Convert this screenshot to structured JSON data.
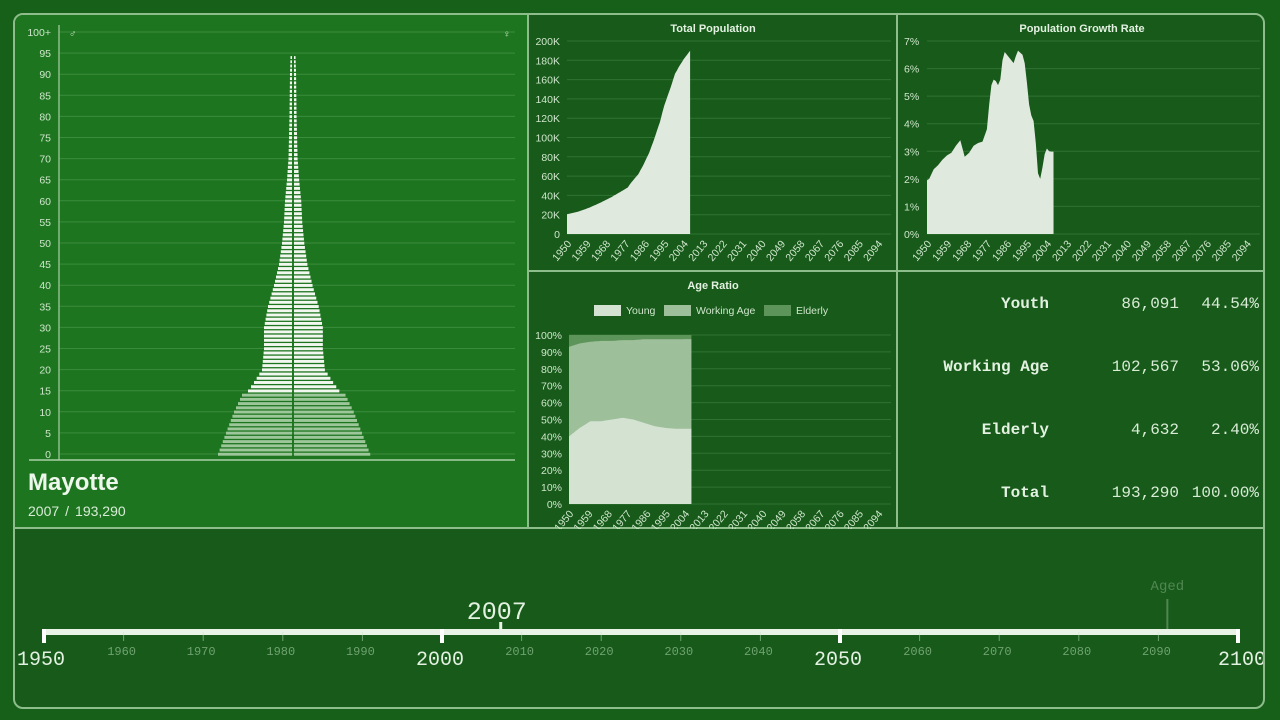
{
  "pyramid": {
    "country": "Mayotte",
    "year": "2007",
    "separator": "/",
    "population": "193,290",
    "male_symbol": "♂",
    "female_symbol": "♀",
    "age_ticks": [
      "0",
      "5",
      "10",
      "15",
      "20",
      "25",
      "30",
      "35",
      "40",
      "45",
      "50",
      "55",
      "60",
      "65",
      "70",
      "75",
      "80",
      "85",
      "90",
      "95",
      "100+"
    ]
  },
  "chart_data": [
    {
      "type": "area",
      "title": "Total Population",
      "xlabel": "",
      "ylabel": "",
      "x_ticks": [
        "1950",
        "1959",
        "1968",
        "1977",
        "1986",
        "1995",
        "2004",
        "2013",
        "2022",
        "2031",
        "2040",
        "2049",
        "2058",
        "2067",
        "2076",
        "2085",
        "2094"
      ],
      "y_ticks": [
        "0",
        "20K",
        "40K",
        "60K",
        "80K",
        "100K",
        "120K",
        "140K",
        "160K",
        "180K",
        "200K"
      ],
      "ylim": [
        0,
        200000
      ],
      "xlim": [
        1950,
        2100
      ],
      "grid": true,
      "x": [
        1950,
        1955,
        1960,
        1965,
        1970,
        1975,
        1978,
        1980,
        1983,
        1985,
        1988,
        1990,
        1993,
        1995,
        1998,
        2000,
        2002,
        2004,
        2007
      ],
      "values": [
        20500,
        23000,
        27000,
        32000,
        37500,
        44000,
        48000,
        54000,
        62000,
        70000,
        84000,
        96000,
        116000,
        133000,
        152000,
        166000,
        174000,
        181000,
        190000
      ]
    },
    {
      "type": "area",
      "title": "Population Growth Rate",
      "xlabel": "",
      "ylabel": "",
      "x_ticks": [
        "1950",
        "1959",
        "1968",
        "1977",
        "1986",
        "1995",
        "2004",
        "2013",
        "2022",
        "2031",
        "2040",
        "2049",
        "2058",
        "2067",
        "2076",
        "2085",
        "2094"
      ],
      "y_ticks": [
        "0%",
        "1%",
        "2%",
        "3%",
        "4%",
        "5%",
        "6%",
        "7%"
      ],
      "ylim": [
        0,
        7
      ],
      "xlim": [
        1950,
        2100
      ],
      "grid": true,
      "x": [
        1950,
        1951,
        1953,
        1955,
        1957,
        1959,
        1961,
        1963,
        1965,
        1967,
        1969,
        1971,
        1973,
        1975,
        1977,
        1978,
        1979,
        1980,
        1981,
        1982,
        1983,
        1984,
        1985,
        1987,
        1989,
        1990,
        1991,
        1993,
        1994,
        1995,
        1996,
        1997,
        1998,
        1999,
        2000,
        2001,
        2002,
        2003,
        2004,
        2005,
        2006,
        2007
      ],
      "values": [
        1.95,
        2.0,
        2.35,
        2.5,
        2.7,
        2.85,
        2.95,
        3.2,
        3.4,
        2.8,
        2.95,
        3.2,
        3.3,
        3.35,
        3.8,
        4.7,
        5.4,
        5.6,
        5.55,
        5.4,
        5.6,
        6.3,
        6.6,
        6.4,
        6.2,
        6.45,
        6.65,
        6.5,
        6.2,
        5.5,
        4.7,
        4.3,
        4.1,
        3.3,
        2.2,
        2.0,
        2.4,
        2.9,
        3.1,
        3.0,
        2.99,
        2.99
      ]
    },
    {
      "type": "area",
      "title": "Age Ratio",
      "stacked": true,
      "xlabel": "",
      "ylabel": "",
      "x_ticks": [
        "1950",
        "1959",
        "1968",
        "1977",
        "1986",
        "1995",
        "2004",
        "2013",
        "2022",
        "2031",
        "2040",
        "2049",
        "2058",
        "2067",
        "2076",
        "2085",
        "2094"
      ],
      "y_ticks": [
        "0%",
        "10%",
        "20%",
        "30%",
        "40%",
        "50%",
        "60%",
        "70%",
        "80%",
        "90%",
        "100%"
      ],
      "ylim": [
        0,
        100
      ],
      "xlim": [
        1950,
        2100
      ],
      "legend": [
        "Young",
        "Working Age",
        "Elderly"
      ],
      "legend_position": "top",
      "grid": true,
      "x": [
        1950,
        1955,
        1960,
        1965,
        1970,
        1975,
        1980,
        1985,
        1990,
        1995,
        2000,
        2007
      ],
      "series": [
        {
          "name": "Young",
          "values": [
            40,
            45,
            49,
            49,
            50,
            51,
            50,
            48,
            46,
            45,
            44.5,
            44.5
          ]
        },
        {
          "name": "Working Age",
          "values": [
            53,
            50,
            47,
            47.5,
            46.5,
            46,
            47,
            49.5,
            51.5,
            52.5,
            53,
            53.1
          ]
        },
        {
          "name": "Elderly",
          "values": [
            7,
            5,
            4,
            3.5,
            3.5,
            3,
            3,
            2.5,
            2.5,
            2.5,
            2.5,
            2.4
          ]
        }
      ]
    }
  ],
  "charts": {
    "total_title": "Total Population",
    "growth_title": "Population Growth Rate",
    "age_title": "Age Ratio",
    "age_legend": [
      "Young",
      "Working Age",
      "Elderly"
    ]
  },
  "summary": {
    "rows": [
      {
        "label": "Youth",
        "value": "86,091",
        "pct": "44.54%"
      },
      {
        "label": "Working Age",
        "value": "102,567",
        "pct": "53.06%"
      },
      {
        "label": "Elderly",
        "value": "4,632",
        "pct": "2.40%"
      },
      {
        "label": "Total",
        "value": "193,290",
        "pct": "100.00%"
      }
    ]
  },
  "timeline": {
    "current_year": "2007",
    "start": 1950,
    "end": 2100,
    "major_labels": [
      "1950",
      "2000",
      "2050",
      "2100"
    ],
    "minor_labels": [
      "1960",
      "1970",
      "1980",
      "1990",
      "2010",
      "2020",
      "2030",
      "2040",
      "2060",
      "2070",
      "2080",
      "2090"
    ],
    "marker_label": "Aged",
    "marker_year": 2091
  },
  "colors": {
    "background": "#17601a",
    "panel": "#175a1a",
    "pyramid_panel": "#1e7520",
    "border": "#8dbd8a",
    "area_fill": "#dfe9de",
    "young": "#d3e2d1",
    "working": "#9dbf9a",
    "elderly": "#5c945a"
  }
}
